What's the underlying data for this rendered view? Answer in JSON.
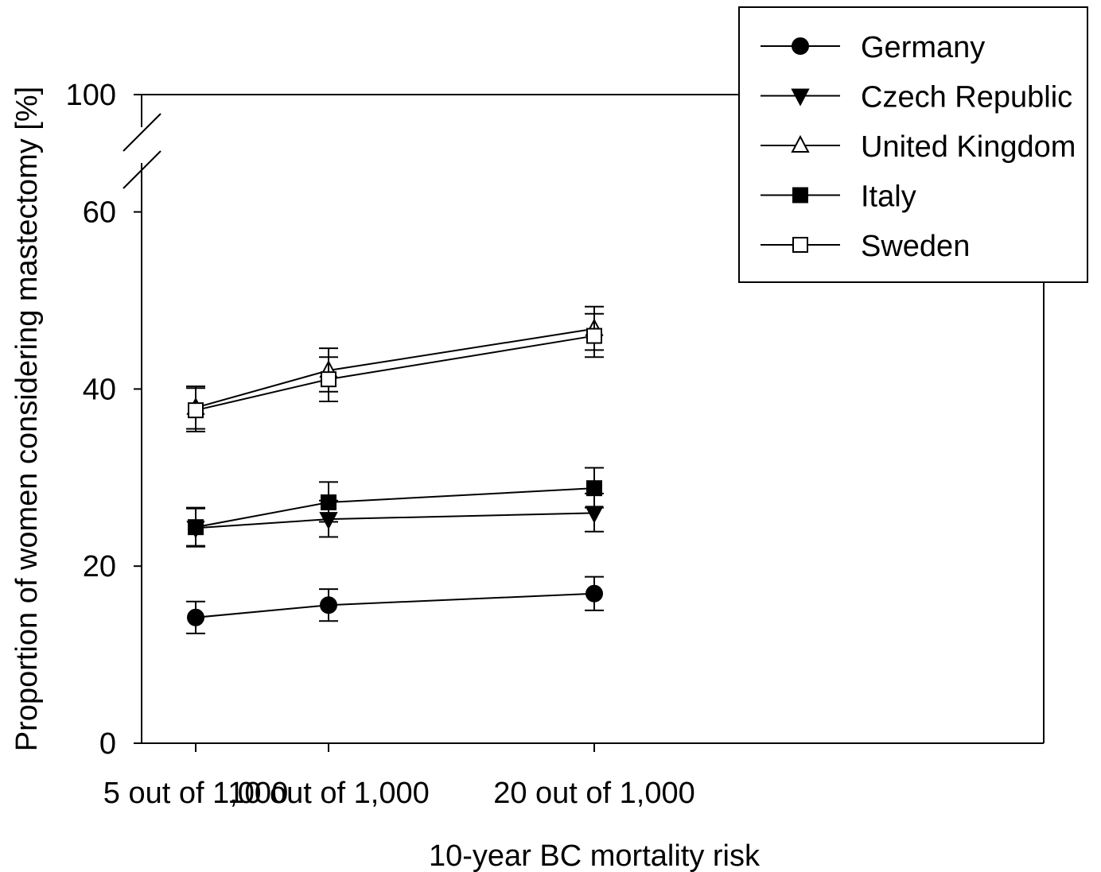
{
  "chart_data": {
    "type": "line",
    "xlabel": "10-year BC mortality risk",
    "ylabel": "Proportion of women considering mastectomy [%]",
    "x": [
      5,
      10,
      20
    ],
    "x_tick_labels": [
      "5 out of 1,000",
      "10 out of 1,000",
      "20 out of 1,000"
    ],
    "xlim": [
      4,
      21
    ],
    "y_axis_break": {
      "lower": [
        0,
        70
      ],
      "upper": [
        95,
        100
      ]
    },
    "y_ticks": [
      0,
      20,
      40,
      60,
      100
    ],
    "y_tick_labels": [
      "0",
      "20",
      "40",
      "60",
      "100"
    ],
    "grid": false,
    "legend_position": "top-right",
    "series": [
      {
        "name": "Germany",
        "marker": "circle-filled",
        "values": [
          14.2,
          15.6,
          16.9
        ],
        "err_low": [
          12.4,
          13.8,
          15.0
        ],
        "err_high": [
          16.0,
          17.4,
          18.8
        ]
      },
      {
        "name": "Czech Republic",
        "marker": "triangle-down-filled",
        "values": [
          24.3,
          25.3,
          26.0
        ],
        "err_low": [
          22.2,
          23.3,
          23.9
        ],
        "err_high": [
          26.5,
          27.4,
          28.2
        ]
      },
      {
        "name": "United Kingdom",
        "marker": "triangle-up-open",
        "values": [
          37.9,
          42.1,
          46.8
        ],
        "err_low": [
          35.5,
          39.7,
          44.4
        ],
        "err_high": [
          40.3,
          44.6,
          49.3
        ]
      },
      {
        "name": "Italy",
        "marker": "square-filled",
        "values": [
          24.4,
          27.2,
          28.8
        ],
        "err_low": [
          22.3,
          25.0,
          26.6
        ],
        "err_high": [
          26.6,
          29.5,
          31.1
        ]
      },
      {
        "name": "Sweden",
        "marker": "square-open",
        "values": [
          37.6,
          41.1,
          46.0
        ],
        "err_low": [
          35.2,
          38.6,
          43.6
        ],
        "err_high": [
          40.1,
          43.6,
          48.5
        ]
      }
    ]
  }
}
